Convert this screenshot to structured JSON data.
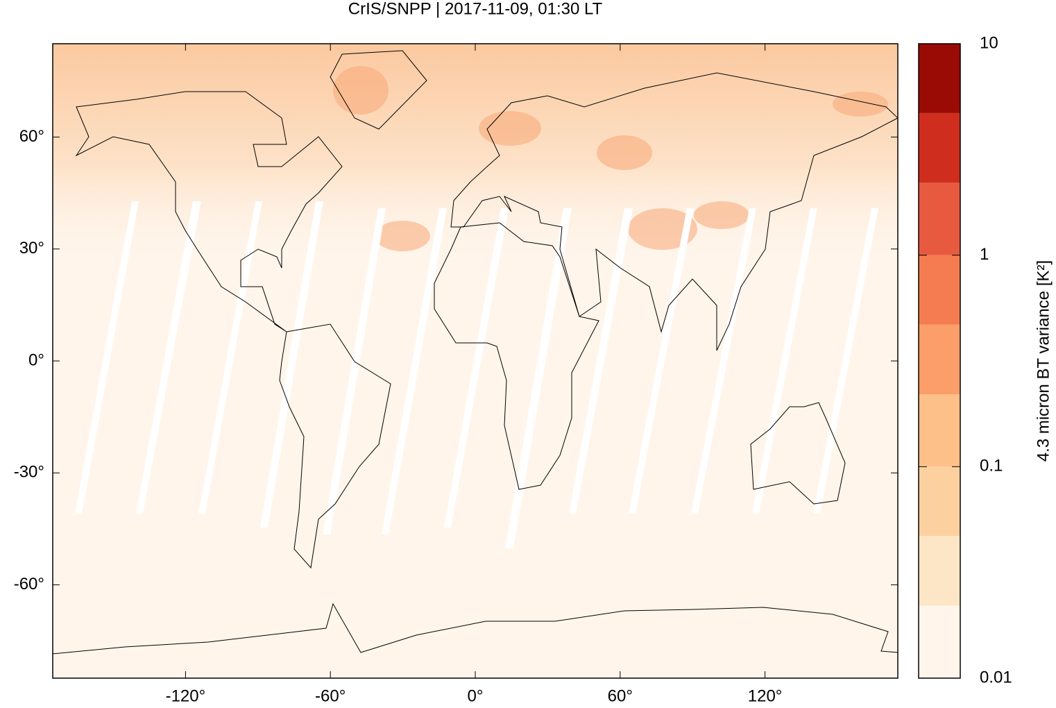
{
  "chart_data": {
    "type": "map",
    "title": "CrIS/SNPP | 2017-11-09, 01:30 LT",
    "xlim": [
      -175,
      175
    ],
    "ylim": [
      -85,
      85
    ],
    "xticks": [
      {
        "value": -120,
        "label": "-120°"
      },
      {
        "value": -60,
        "label": "-60°"
      },
      {
        "value": 0,
        "label": "0°"
      },
      {
        "value": 60,
        "label": "60°"
      },
      {
        "value": 120,
        "label": "120°"
      }
    ],
    "yticks": [
      {
        "value": -60,
        "label": "-60°"
      },
      {
        "value": -30,
        "label": "-30°"
      },
      {
        "value": 0,
        "label": "0°"
      },
      {
        "value": 30,
        "label": "30°"
      },
      {
        "value": 60,
        "label": "60°"
      }
    ],
    "colorbar": {
      "label": "4.3 micron BT variance [K²]",
      "scale": "log",
      "lim": [
        0.01,
        10
      ],
      "ticks": [
        0.01,
        0.1,
        1,
        10
      ],
      "levels": [
        0.01,
        0.022,
        0.047,
        0.1,
        0.22,
        0.47,
        1,
        2.2,
        4.7,
        10
      ],
      "colors": [
        "#fff5eb",
        "#fde6c6",
        "#fdd0a0",
        "#fdc088",
        "#fc9e6a",
        "#f57c51",
        "#e85a3f",
        "#cf2e1f",
        "#9b0b05"
      ]
    }
  }
}
